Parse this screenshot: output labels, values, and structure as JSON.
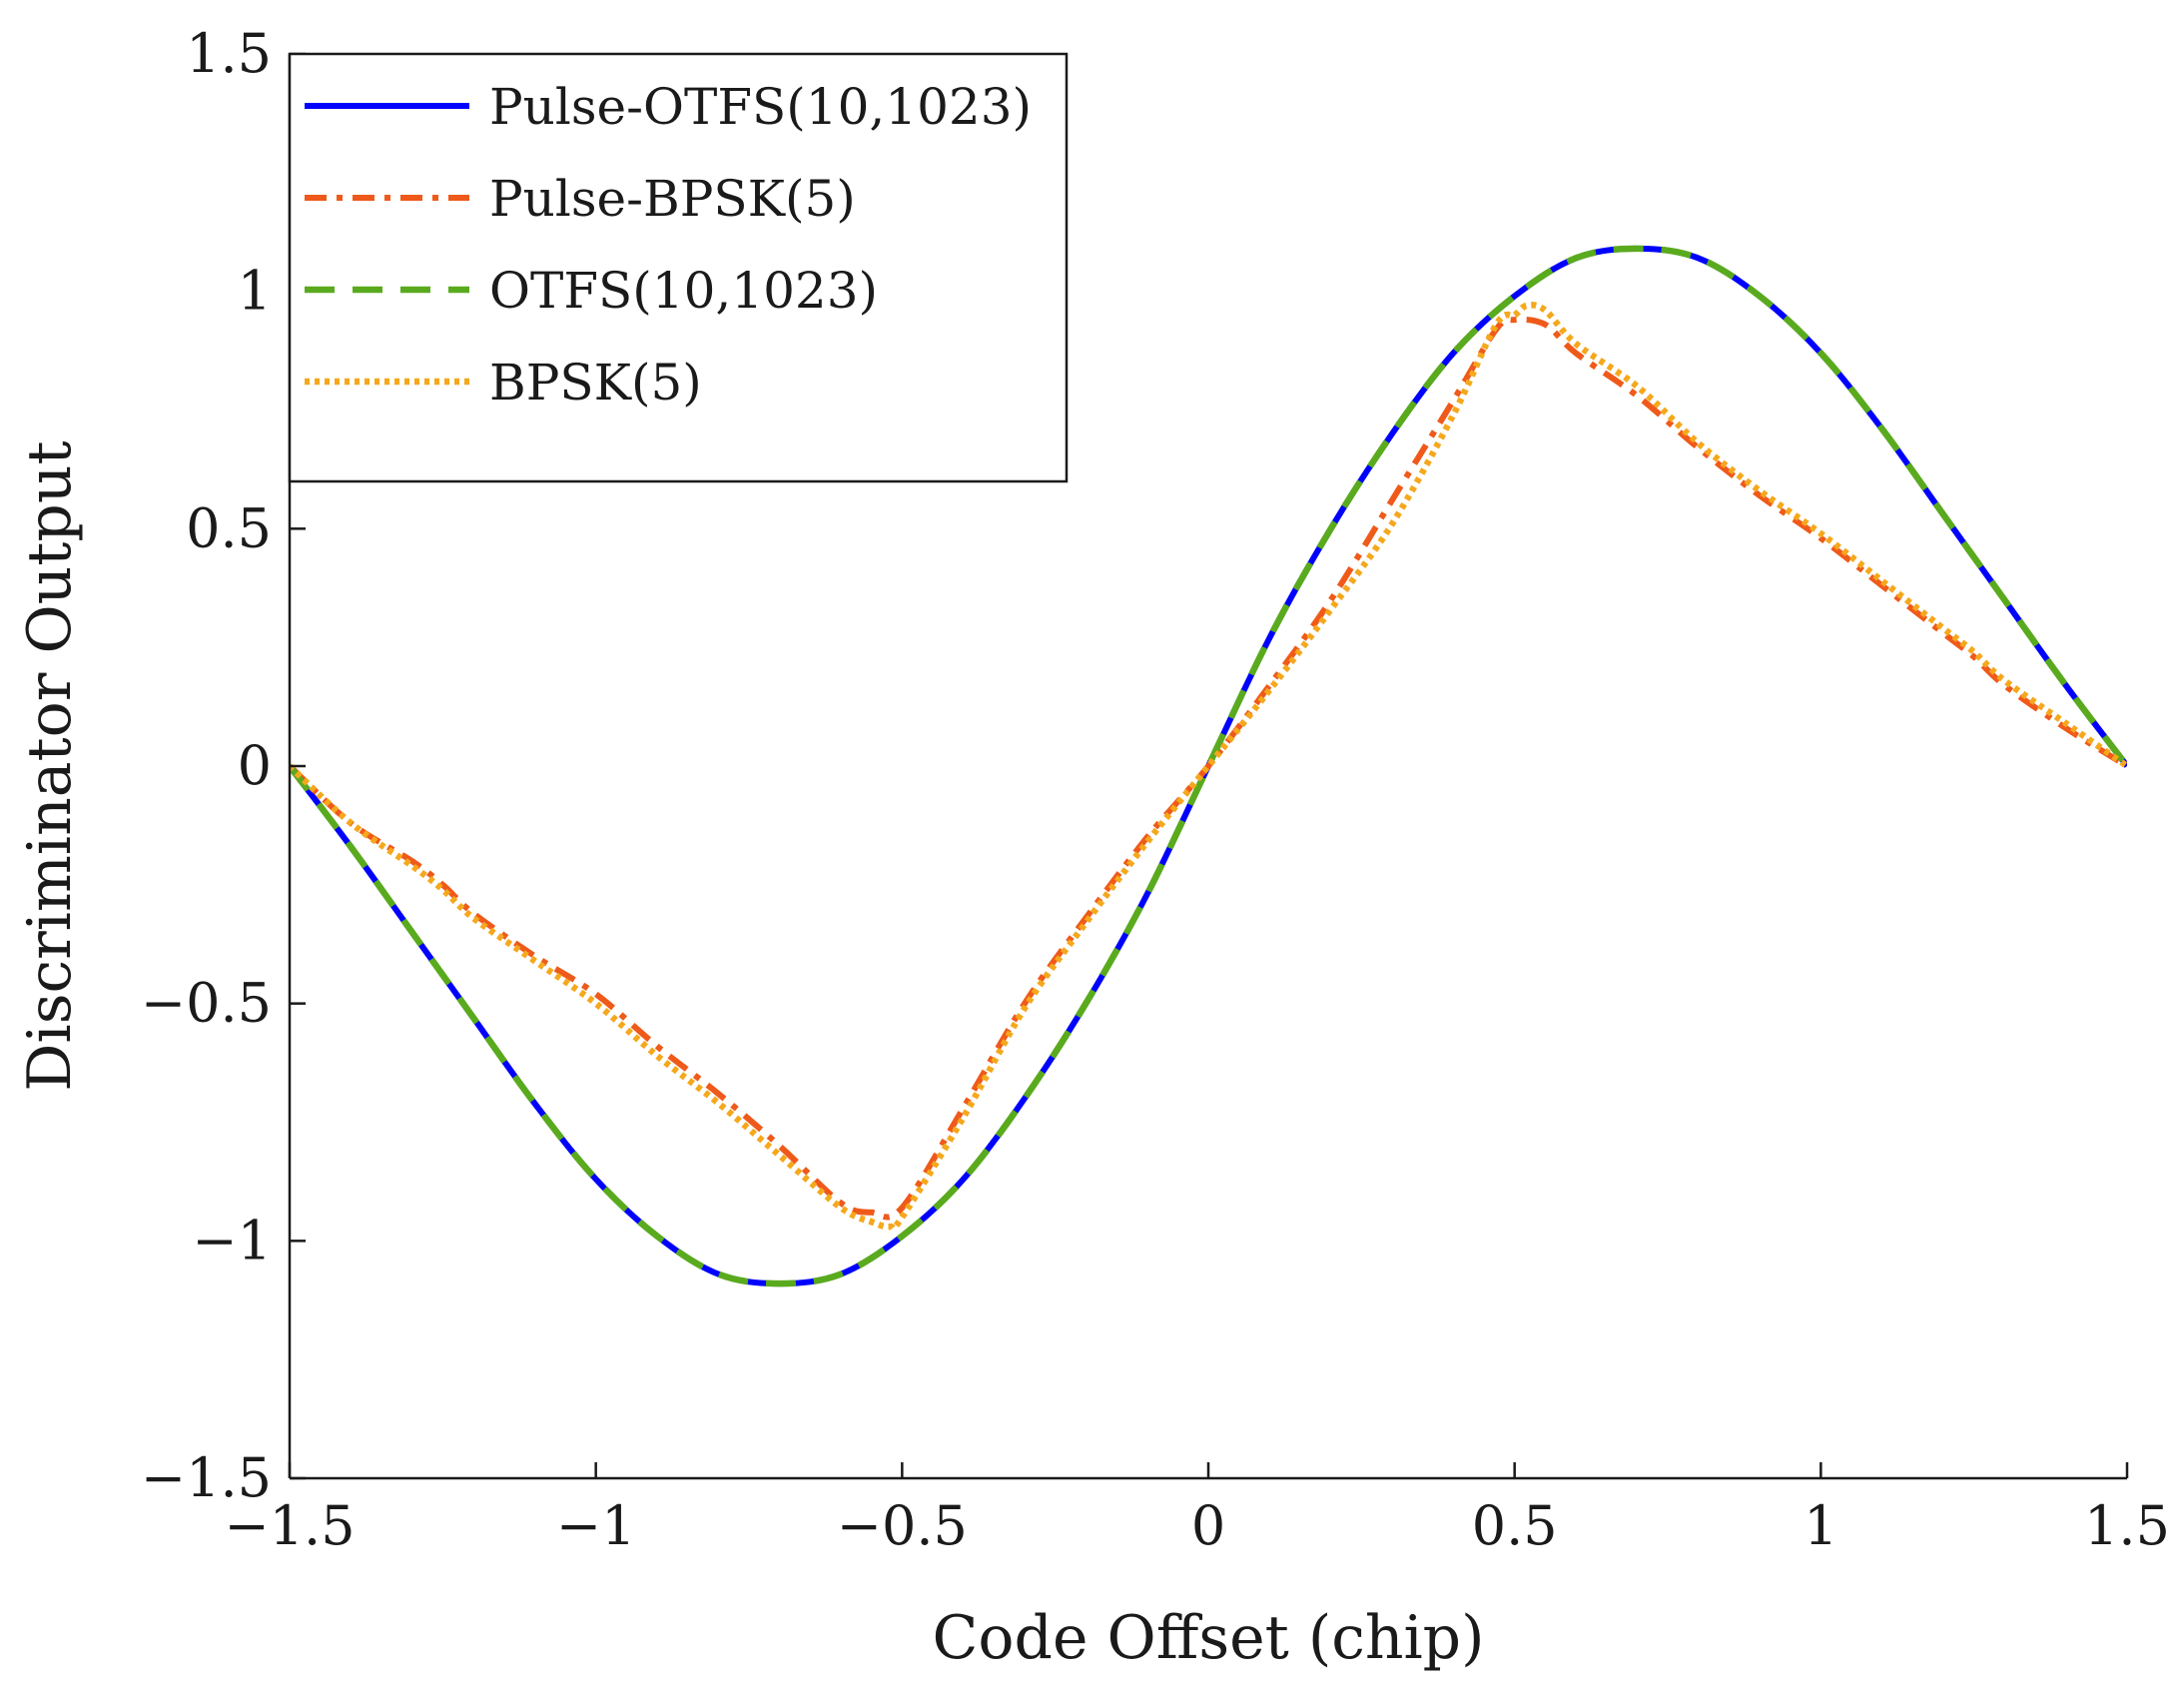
{
  "chart_data": {
    "type": "line",
    "title": "",
    "xlabel": "Code Offset (chip)",
    "ylabel": "Discriminator Output",
    "xlim": [
      -1.5,
      1.5
    ],
    "ylim": [
      -1.5,
      1.5
    ],
    "xticks": [
      -1.5,
      -1,
      -0.5,
      0,
      0.5,
      1,
      1.5
    ],
    "yticks": [
      -1.5,
      -1,
      -0.5,
      0,
      0.5,
      1,
      1.5
    ],
    "xtick_labels": [
      "−1.5",
      "−1",
      "−0.5",
      "0",
      "0.5",
      "1",
      "1.5"
    ],
    "ytick_labels": [
      "−1.5",
      "−1",
      "−0.5",
      "0",
      "0.5",
      "1",
      "1.5"
    ],
    "grid": false,
    "legend_position": "top-left",
    "series": [
      {
        "name": "Pulse-OTFS(10,1023)",
        "color": "#0000ff",
        "style": "solid",
        "x": [
          -1.5,
          -1.4,
          -1.3,
          -1.2,
          -1.1,
          -1.0,
          -0.9,
          -0.8,
          -0.7,
          -0.6,
          -0.5,
          -0.4,
          -0.3,
          -0.2,
          -0.1,
          0,
          0.1,
          0.2,
          0.3,
          0.4,
          0.5,
          0.6,
          0.7,
          0.8,
          0.9,
          1.0,
          1.1,
          1.2,
          1.3,
          1.4,
          1.5
        ],
        "y": [
          0,
          -0.17,
          -0.35,
          -0.53,
          -0.71,
          -0.87,
          -0.99,
          -1.07,
          -1.09,
          -1.07,
          -0.99,
          -0.87,
          -0.7,
          -0.5,
          -0.27,
          0,
          0.27,
          0.5,
          0.7,
          0.87,
          0.99,
          1.07,
          1.09,
          1.07,
          0.99,
          0.87,
          0.71,
          0.53,
          0.35,
          0.17,
          0
        ]
      },
      {
        "name": "Pulse-BPSK(5)",
        "color": "#ef5a1a",
        "style": "dashdot",
        "x": [
          -1.5,
          -1.4,
          -1.3,
          -1.25,
          -1.2,
          -1.1,
          -1.0,
          -0.9,
          -0.8,
          -0.7,
          -0.6,
          -0.55,
          -0.5,
          -0.4,
          -0.3,
          -0.2,
          -0.1,
          0,
          0.1,
          0.2,
          0.3,
          0.4,
          0.47,
          0.5,
          0.55,
          0.6,
          0.7,
          0.8,
          0.9,
          1.0,
          1.1,
          1.2,
          1.25,
          1.3,
          1.4,
          1.5
        ],
        "y": [
          0,
          -0.12,
          -0.2,
          -0.25,
          -0.31,
          -0.4,
          -0.48,
          -0.59,
          -0.69,
          -0.8,
          -0.92,
          -0.94,
          -0.93,
          -0.72,
          -0.5,
          -0.32,
          -0.15,
          0,
          0.17,
          0.35,
          0.56,
          0.77,
          0.92,
          0.94,
          0.93,
          0.87,
          0.78,
          0.67,
          0.57,
          0.48,
          0.38,
          0.28,
          0.23,
          0.17,
          0.08,
          0
        ]
      },
      {
        "name": "OTFS(10,1023)",
        "color": "#5aaa1e",
        "style": "dashed",
        "x": [
          -1.5,
          -1.4,
          -1.3,
          -1.2,
          -1.1,
          -1.0,
          -0.9,
          -0.8,
          -0.7,
          -0.6,
          -0.5,
          -0.4,
          -0.3,
          -0.2,
          -0.1,
          0,
          0.1,
          0.2,
          0.3,
          0.4,
          0.5,
          0.6,
          0.7,
          0.8,
          0.9,
          1.0,
          1.1,
          1.2,
          1.3,
          1.4,
          1.5
        ],
        "y": [
          0,
          -0.17,
          -0.35,
          -0.53,
          -0.71,
          -0.87,
          -0.99,
          -1.07,
          -1.09,
          -1.07,
          -0.99,
          -0.87,
          -0.7,
          -0.5,
          -0.27,
          0,
          0.27,
          0.5,
          0.7,
          0.87,
          0.99,
          1.07,
          1.09,
          1.07,
          0.99,
          0.87,
          0.71,
          0.53,
          0.35,
          0.17,
          0
        ]
      },
      {
        "name": "BPSK(5)",
        "color": "#f5a81c",
        "style": "dotted",
        "x": [
          -1.5,
          -1.4,
          -1.3,
          -1.25,
          -1.2,
          -1.1,
          -1.0,
          -0.9,
          -0.8,
          -0.7,
          -0.6,
          -0.55,
          -0.52,
          -0.5,
          -0.4,
          -0.3,
          -0.2,
          -0.1,
          0,
          0.1,
          0.2,
          0.3,
          0.4,
          0.47,
          0.5,
          0.52,
          0.55,
          0.6,
          0.7,
          0.8,
          0.9,
          1.0,
          1.1,
          1.2,
          1.25,
          1.3,
          1.4,
          1.5
        ],
        "y": [
          0,
          -0.12,
          -0.21,
          -0.26,
          -0.32,
          -0.41,
          -0.5,
          -0.61,
          -0.71,
          -0.82,
          -0.93,
          -0.96,
          -0.97,
          -0.95,
          -0.74,
          -0.51,
          -0.33,
          -0.16,
          0,
          0.16,
          0.33,
          0.51,
          0.74,
          0.93,
          0.95,
          0.97,
          0.96,
          0.89,
          0.8,
          0.68,
          0.58,
          0.49,
          0.39,
          0.29,
          0.24,
          0.18,
          0.09,
          0
        ]
      }
    ]
  }
}
